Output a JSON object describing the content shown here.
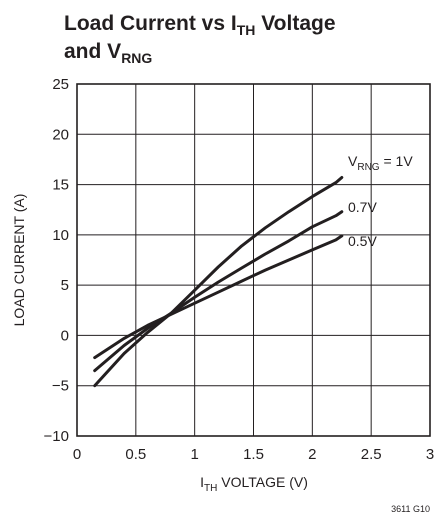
{
  "chart_data": {
    "type": "line",
    "title": {
      "line1_a": "Load Current vs I",
      "line1_sub": "TH",
      "line1_b": " Voltage",
      "line2_a": "and V",
      "line2_sub": "RNG"
    },
    "xlabel": {
      "main": "I",
      "sub": "TH",
      "rest": " VOLTAGE (V)"
    },
    "ylabel": "LOAD CURRENT (A)",
    "xlim": [
      0,
      3
    ],
    "ylim": [
      -10,
      25
    ],
    "xticks": [
      0,
      0.5,
      1,
      1.5,
      2,
      2.5,
      3
    ],
    "xtick_labels": [
      "0",
      "0.5",
      "1",
      "1.5",
      "2",
      "2.5",
      "3"
    ],
    "yticks": [
      -10,
      -5,
      0,
      5,
      10,
      15,
      20,
      25
    ],
    "ytick_labels": [
      "−10",
      "−5",
      "0",
      "5",
      "10",
      "15",
      "20",
      "25"
    ],
    "grid": true,
    "series": [
      {
        "name": "VRNG = 1V",
        "label_main": "V",
        "label_sub": "RNG",
        "label_rest": " = 1V",
        "x": [
          0.15,
          0.4,
          0.6,
          0.8,
          1.0,
          1.2,
          1.4,
          1.6,
          1.8,
          2.0,
          2.2,
          2.25
        ],
        "y": [
          -5.0,
          -1.8,
          0.3,
          2.2,
          4.5,
          6.8,
          8.9,
          10.7,
          12.3,
          13.8,
          15.2,
          15.7
        ]
      },
      {
        "name": "0.7V",
        "label_main": "0.7V",
        "x": [
          0.15,
          0.4,
          0.6,
          0.8,
          1.0,
          1.2,
          1.4,
          1.6,
          1.8,
          2.0,
          2.2,
          2.25
        ],
        "y": [
          -3.5,
          -1.0,
          0.7,
          2.2,
          3.8,
          5.3,
          6.7,
          8.1,
          9.4,
          10.8,
          11.9,
          12.3
        ]
      },
      {
        "name": "0.5V",
        "label_main": "0.5V",
        "x": [
          0.15,
          0.4,
          0.6,
          0.8,
          1.0,
          1.2,
          1.4,
          1.6,
          1.8,
          2.0,
          2.2,
          2.25
        ],
        "y": [
          -2.2,
          -0.3,
          1.0,
          2.1,
          3.2,
          4.3,
          5.4,
          6.5,
          7.5,
          8.5,
          9.5,
          9.9
        ]
      }
    ],
    "footnote": "3611 G10"
  }
}
